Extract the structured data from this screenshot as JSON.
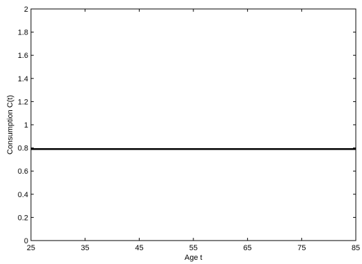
{
  "chart_data": {
    "type": "line",
    "title": "",
    "xlabel": "Age t",
    "ylabel": "Consumption C(t)",
    "xlim": [
      25,
      85
    ],
    "ylim": [
      0,
      2
    ],
    "xticks": [
      25,
      35,
      45,
      55,
      65,
      75,
      85
    ],
    "yticks": [
      0,
      0.2,
      0.4,
      0.6,
      0.8,
      1,
      1.2,
      1.4,
      1.6,
      1.8,
      2
    ],
    "xtick_labels": [
      "25",
      "35",
      "45",
      "55",
      "65",
      "75",
      "85"
    ],
    "ytick_labels": [
      "0",
      "0.2",
      "0.4",
      "0.6",
      "0.8",
      "1",
      "1.2",
      "1.4",
      "1.6",
      "1.8",
      "2"
    ],
    "grid": false,
    "series": [
      {
        "color": "#000000",
        "x": [
          25,
          35,
          45,
          55,
          65,
          75,
          85
        ],
        "y": [
          0.79,
          0.79,
          0.79,
          0.79,
          0.79,
          0.79,
          0.79
        ]
      }
    ]
  }
}
